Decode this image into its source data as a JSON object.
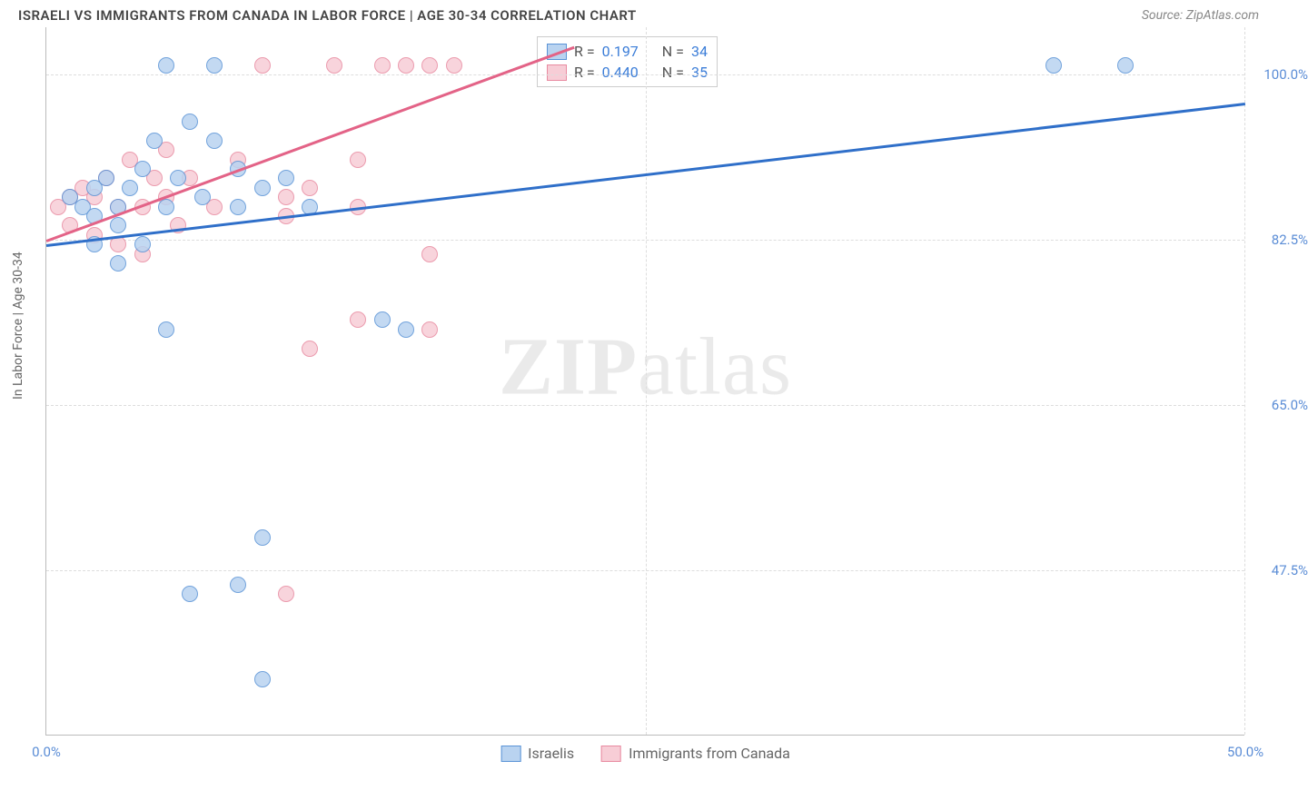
{
  "header": {
    "title": "ISRAELI VS IMMIGRANTS FROM CANADA IN LABOR FORCE | AGE 30-34 CORRELATION CHART",
    "title_fontsize": 15,
    "source": "Source: ZipAtlas.com",
    "source_fontsize": 14
  },
  "chart": {
    "type": "scatter",
    "ylabel": "In Labor Force | Age 30-34",
    "xlim": [
      0,
      50
    ],
    "ylim": [
      30,
      105
    ],
    "xtick_labels": [
      "0.0%",
      "50.0%"
    ],
    "xtick_positions": [
      0,
      50
    ],
    "xtick_midpoint": 25,
    "ytick_labels": [
      "47.5%",
      "65.0%",
      "82.5%",
      "100.0%"
    ],
    "ytick_positions": [
      47.5,
      65,
      82.5,
      100
    ],
    "grid_color": "#dddddd",
    "axis_color": "#bbbbbb",
    "background_color": "#ffffff",
    "tick_label_color": "#5b8dd6",
    "tick_fontsize": 15,
    "marker_radius": 9,
    "marker_border_width": 1.5,
    "trend_line_width": 2.5
  },
  "series": {
    "israelis": {
      "label": "Israelis",
      "fill_color": "#b9d3f0",
      "stroke_color": "#5a93d6",
      "line_color": "#2f6fc9",
      "R": "0.197",
      "N": "34",
      "trend": {
        "x1": 0,
        "y1": 82,
        "x2": 50,
        "y2": 97
      },
      "points": [
        {
          "x": 1,
          "y": 87
        },
        {
          "x": 1.5,
          "y": 86
        },
        {
          "x": 2,
          "y": 88
        },
        {
          "x": 2,
          "y": 85
        },
        {
          "x": 2.5,
          "y": 89
        },
        {
          "x": 3,
          "y": 86
        },
        {
          "x": 3,
          "y": 84
        },
        {
          "x": 3.5,
          "y": 88
        },
        {
          "x": 4,
          "y": 90
        },
        {
          "x": 4,
          "y": 82
        },
        {
          "x": 4.5,
          "y": 93
        },
        {
          "x": 5,
          "y": 86
        },
        {
          "x": 5,
          "y": 101
        },
        {
          "x": 5.5,
          "y": 89
        },
        {
          "x": 6,
          "y": 95
        },
        {
          "x": 6.5,
          "y": 87
        },
        {
          "x": 7,
          "y": 101
        },
        {
          "x": 7,
          "y": 93
        },
        {
          "x": 8,
          "y": 90
        },
        {
          "x": 8,
          "y": 86
        },
        {
          "x": 9,
          "y": 88
        },
        {
          "x": 10,
          "y": 89
        },
        {
          "x": 11,
          "y": 86
        },
        {
          "x": 2,
          "y": 82
        },
        {
          "x": 6,
          "y": 45
        },
        {
          "x": 8,
          "y": 46
        },
        {
          "x": 9,
          "y": 51
        },
        {
          "x": 9,
          "y": 36
        },
        {
          "x": 14,
          "y": 74
        },
        {
          "x": 15,
          "y": 73
        },
        {
          "x": 5,
          "y": 73
        },
        {
          "x": 3,
          "y": 80
        },
        {
          "x": 42,
          "y": 101
        },
        {
          "x": 45,
          "y": 101
        }
      ]
    },
    "immigrants": {
      "label": "Immigrants from Canada",
      "fill_color": "#f7cdd6",
      "stroke_color": "#e88aa0",
      "line_color": "#e36387",
      "R": "0.440",
      "N": "35",
      "trend": {
        "x1": 0,
        "y1": 82.5,
        "x2": 22,
        "y2": 103
      },
      "points": [
        {
          "x": 0.5,
          "y": 86
        },
        {
          "x": 1,
          "y": 87
        },
        {
          "x": 1,
          "y": 84
        },
        {
          "x": 1.5,
          "y": 88
        },
        {
          "x": 2,
          "y": 87
        },
        {
          "x": 2,
          "y": 83
        },
        {
          "x": 2.5,
          "y": 89
        },
        {
          "x": 3,
          "y": 86
        },
        {
          "x": 3,
          "y": 82
        },
        {
          "x": 3.5,
          "y": 91
        },
        {
          "x": 4,
          "y": 86
        },
        {
          "x": 4,
          "y": 81
        },
        {
          "x": 4.5,
          "y": 89
        },
        {
          "x": 5,
          "y": 92
        },
        {
          "x": 5,
          "y": 87
        },
        {
          "x": 5.5,
          "y": 84
        },
        {
          "x": 6,
          "y": 89
        },
        {
          "x": 7,
          "y": 86
        },
        {
          "x": 8,
          "y": 91
        },
        {
          "x": 9,
          "y": 101
        },
        {
          "x": 10,
          "y": 85
        },
        {
          "x": 10,
          "y": 87
        },
        {
          "x": 11,
          "y": 88
        },
        {
          "x": 12,
          "y": 101
        },
        {
          "x": 13,
          "y": 86
        },
        {
          "x": 13,
          "y": 91
        },
        {
          "x": 14,
          "y": 101
        },
        {
          "x": 15,
          "y": 101
        },
        {
          "x": 16,
          "y": 101
        },
        {
          "x": 17,
          "y": 101
        },
        {
          "x": 13,
          "y": 74
        },
        {
          "x": 11,
          "y": 71
        },
        {
          "x": 16,
          "y": 81
        },
        {
          "x": 16,
          "y": 73
        },
        {
          "x": 10,
          "y": 45
        }
      ]
    }
  },
  "legend_top": {
    "r_label": "R =",
    "n_label": "N ="
  },
  "watermark": {
    "part1": "ZIP",
    "part2": "atlas"
  }
}
